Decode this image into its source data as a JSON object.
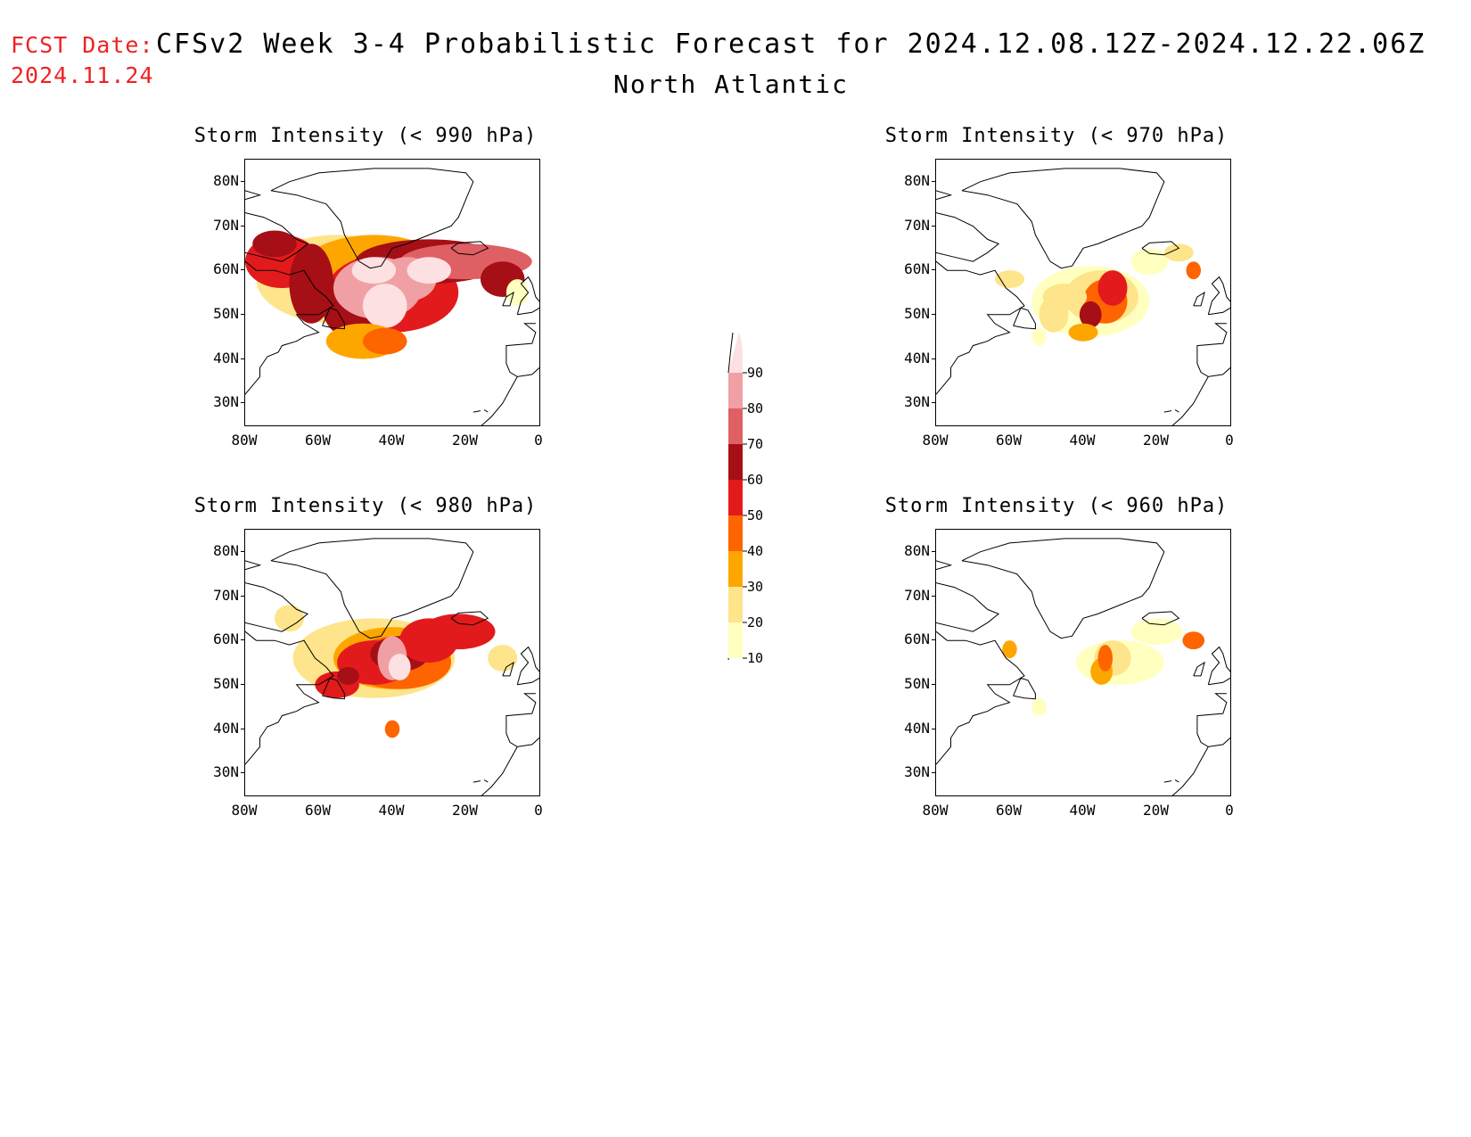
{
  "header": {
    "fcst_label": "FCST Date:",
    "fcst_date": "2024.11.24",
    "title": "CFSv2 Week 3-4 Probabilistic Forecast for 2024.12.08.12Z-2024.12.22.06Z",
    "region": "North Atlantic"
  },
  "axes": {
    "lat_ticks": [
      "80N",
      "70N",
      "60N",
      "50N",
      "40N",
      "30N"
    ],
    "lon_ticks": [
      "80W",
      "60W",
      "40W",
      "20W",
      "0"
    ]
  },
  "legend": {
    "labels": [
      "10",
      "20",
      "30",
      "40",
      "50",
      "60",
      "70",
      "80",
      "90"
    ],
    "colors": [
      "#ffffbf",
      "#fee48a",
      "#fea600",
      "#fe6400",
      "#e31a1c",
      "#a50f15",
      "#de6065",
      "#f0a0a4",
      "#fde0e2"
    ]
  },
  "panels": [
    {
      "title": "Storm Intensity (< 990 hPa)",
      "level": 4
    },
    {
      "title": "Storm Intensity (< 970 hPa)",
      "level": 2
    },
    {
      "title": "Storm Intensity (< 980 hPa)",
      "level": 3
    },
    {
      "title": "Storm Intensity (< 960 hPa)",
      "level": 1
    }
  ]
}
